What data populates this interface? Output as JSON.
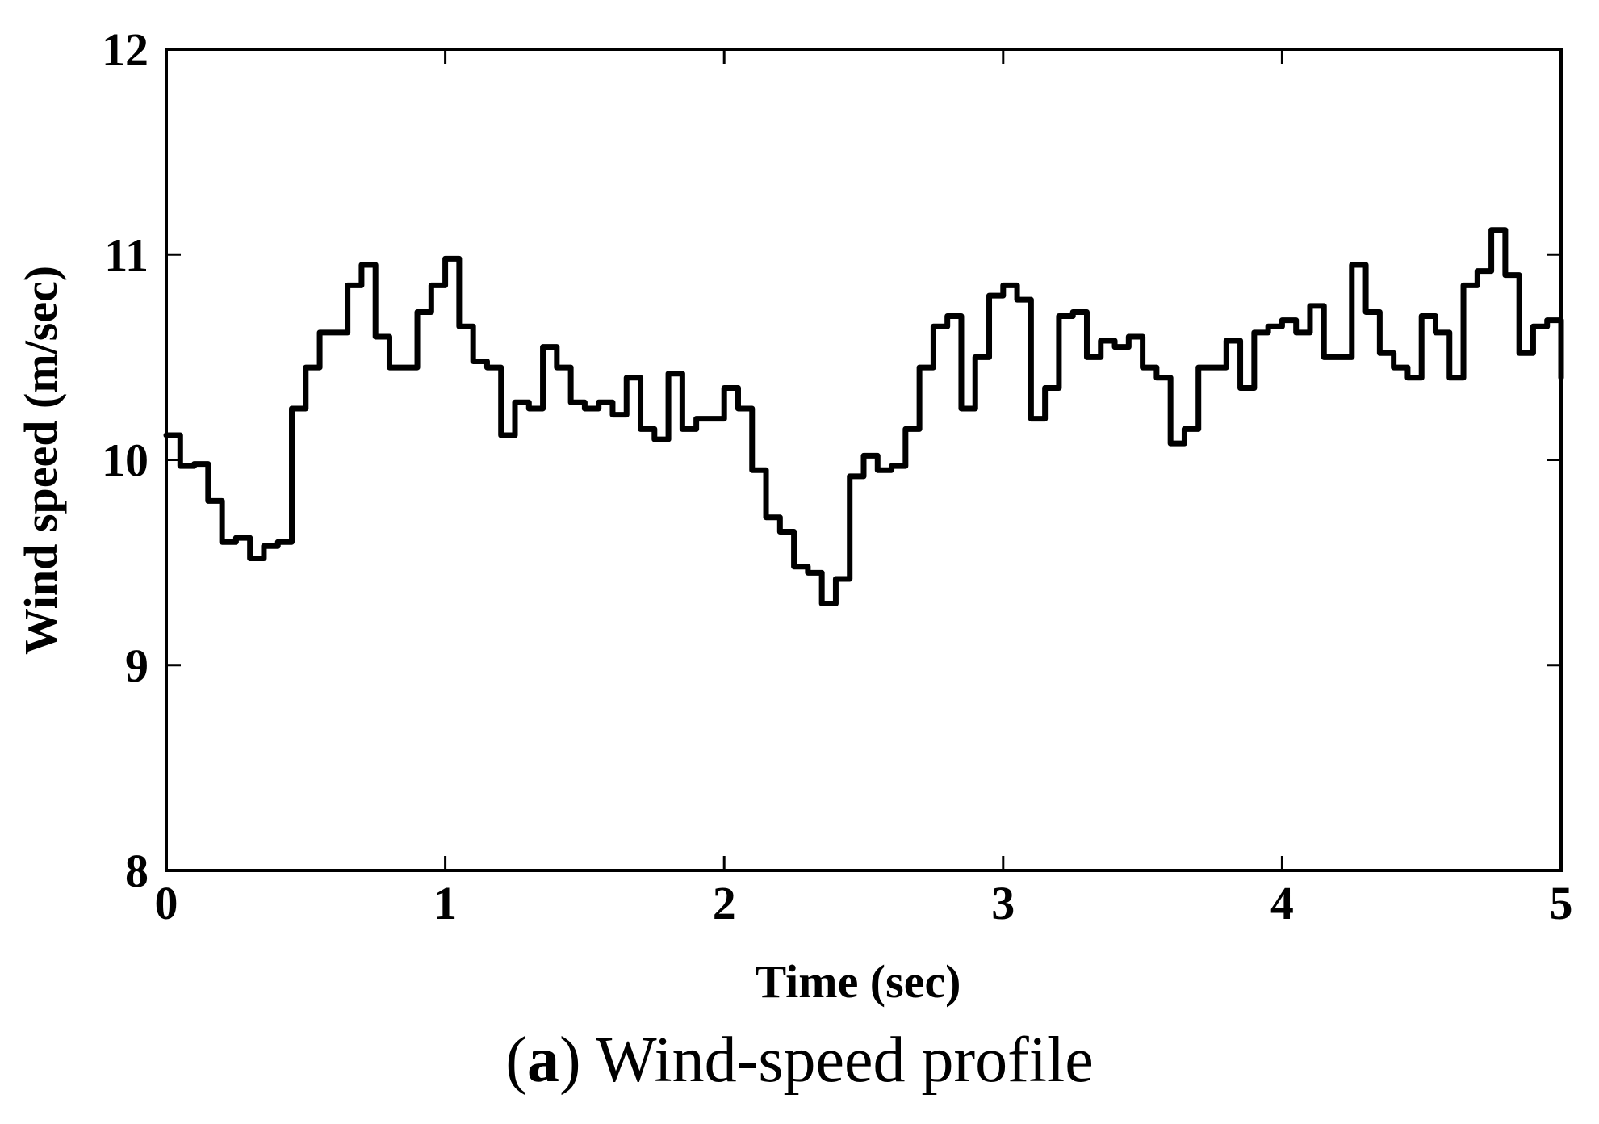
{
  "chart_data": {
    "type": "line",
    "title": "",
    "xlabel": "Time (sec)",
    "ylabel": "Wind speed (m/sec)",
    "xlim": [
      0,
      5
    ],
    "ylim": [
      8,
      12
    ],
    "xticks": [
      0,
      1,
      2,
      3,
      4,
      5
    ],
    "yticks": [
      8,
      9,
      10,
      11,
      12
    ],
    "grid": false,
    "line_color": "#000000",
    "series": [
      {
        "x": [
          0,
          0.05,
          0.1,
          0.15,
          0.2,
          0.25,
          0.3,
          0.35,
          0.4,
          0.45,
          0.5,
          0.55,
          0.6,
          0.65,
          0.7,
          0.75,
          0.8,
          0.85,
          0.9,
          0.95,
          1.0,
          1.05,
          1.1,
          1.15,
          1.2,
          1.25,
          1.3,
          1.35,
          1.4,
          1.45,
          1.5,
          1.55,
          1.6,
          1.65,
          1.7,
          1.75,
          1.8,
          1.85,
          1.9,
          1.95,
          2.0,
          2.05,
          2.1,
          2.15,
          2.2,
          2.25,
          2.3,
          2.35,
          2.4,
          2.45,
          2.5,
          2.55,
          2.6,
          2.65,
          2.7,
          2.75,
          2.8,
          2.85,
          2.9,
          2.95,
          3.0,
          3.05,
          3.1,
          3.15,
          3.2,
          3.25,
          3.3,
          3.35,
          3.4,
          3.45,
          3.5,
          3.55,
          3.6,
          3.65,
          3.7,
          3.75,
          3.8,
          3.85,
          3.9,
          3.95,
          4.0,
          4.05,
          4.1,
          4.15,
          4.2,
          4.25,
          4.3,
          4.35,
          4.4,
          4.45,
          4.5,
          4.55,
          4.6,
          4.65,
          4.7,
          4.75,
          4.8,
          4.85,
          4.9,
          4.95,
          5.0
        ],
        "y": [
          10.12,
          9.97,
          9.98,
          9.8,
          9.6,
          9.62,
          9.52,
          9.58,
          9.6,
          10.25,
          10.45,
          10.62,
          10.62,
          10.85,
          10.95,
          10.6,
          10.45,
          10.45,
          10.72,
          10.85,
          10.98,
          10.65,
          10.48,
          10.45,
          10.12,
          10.28,
          10.25,
          10.55,
          10.45,
          10.28,
          10.25,
          10.28,
          10.22,
          10.4,
          10.15,
          10.1,
          10.42,
          10.15,
          10.2,
          10.2,
          10.35,
          10.25,
          9.95,
          9.72,
          9.65,
          9.48,
          9.45,
          9.3,
          9.42,
          9.92,
          10.02,
          9.95,
          9.97,
          10.15,
          10.45,
          10.65,
          10.7,
          10.25,
          10.5,
          10.8,
          10.85,
          10.78,
          10.2,
          10.35,
          10.7,
          10.72,
          10.5,
          10.58,
          10.55,
          10.6,
          10.45,
          10.4,
          10.08,
          10.15,
          10.45,
          10.45,
          10.58,
          10.35,
          10.62,
          10.65,
          10.68,
          10.62,
          10.75,
          10.5,
          10.5,
          10.95,
          10.72,
          10.52,
          10.45,
          10.4,
          10.7,
          10.62,
          10.4,
          10.85,
          10.92,
          11.12,
          10.9,
          10.52,
          10.65,
          10.68,
          10.4
        ]
      }
    ]
  },
  "caption": {
    "letter": "a",
    "text": "Wind-speed profile"
  }
}
